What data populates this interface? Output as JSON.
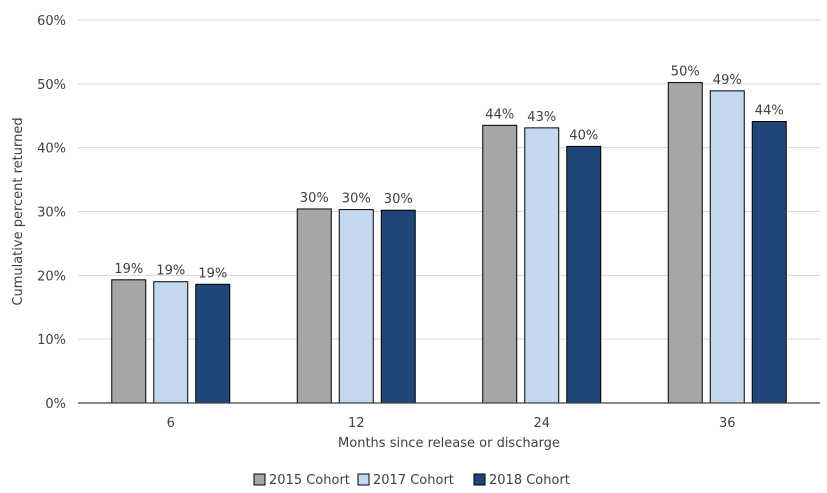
{
  "chart_data": {
    "type": "bar",
    "categories": [
      "6",
      "12",
      "24",
      "36"
    ],
    "series": [
      {
        "name": "2015 Cohort",
        "color": "#a6a6a6",
        "values": [
          19.3,
          30.4,
          43.5,
          50.2
        ],
        "labels": [
          "19%",
          "30%",
          "44%",
          "50%"
        ]
      },
      {
        "name": "2017 Cohort",
        "color": "#c5d7ef",
        "values": [
          19.0,
          30.3,
          43.1,
          48.9
        ],
        "labels": [
          "19%",
          "30%",
          "43%",
          "49%"
        ]
      },
      {
        "name": "2018 Cohort",
        "color": "#1f4678",
        "values": [
          18.6,
          30.2,
          40.2,
          44.1
        ],
        "labels": [
          "19%",
          "30%",
          "40%",
          "44%"
        ]
      }
    ],
    "title": "",
    "xlabel": "Months since release or discharge",
    "ylabel": "Cumulative percent returned",
    "ylim": [
      0,
      60
    ],
    "yticks": [
      0,
      10,
      20,
      30,
      40,
      50,
      60
    ],
    "ytick_labels": [
      "0%",
      "10%",
      "20%",
      "30%",
      "40%",
      "50%",
      "60%"
    ],
    "grid": true,
    "legend_position": "bottom"
  }
}
